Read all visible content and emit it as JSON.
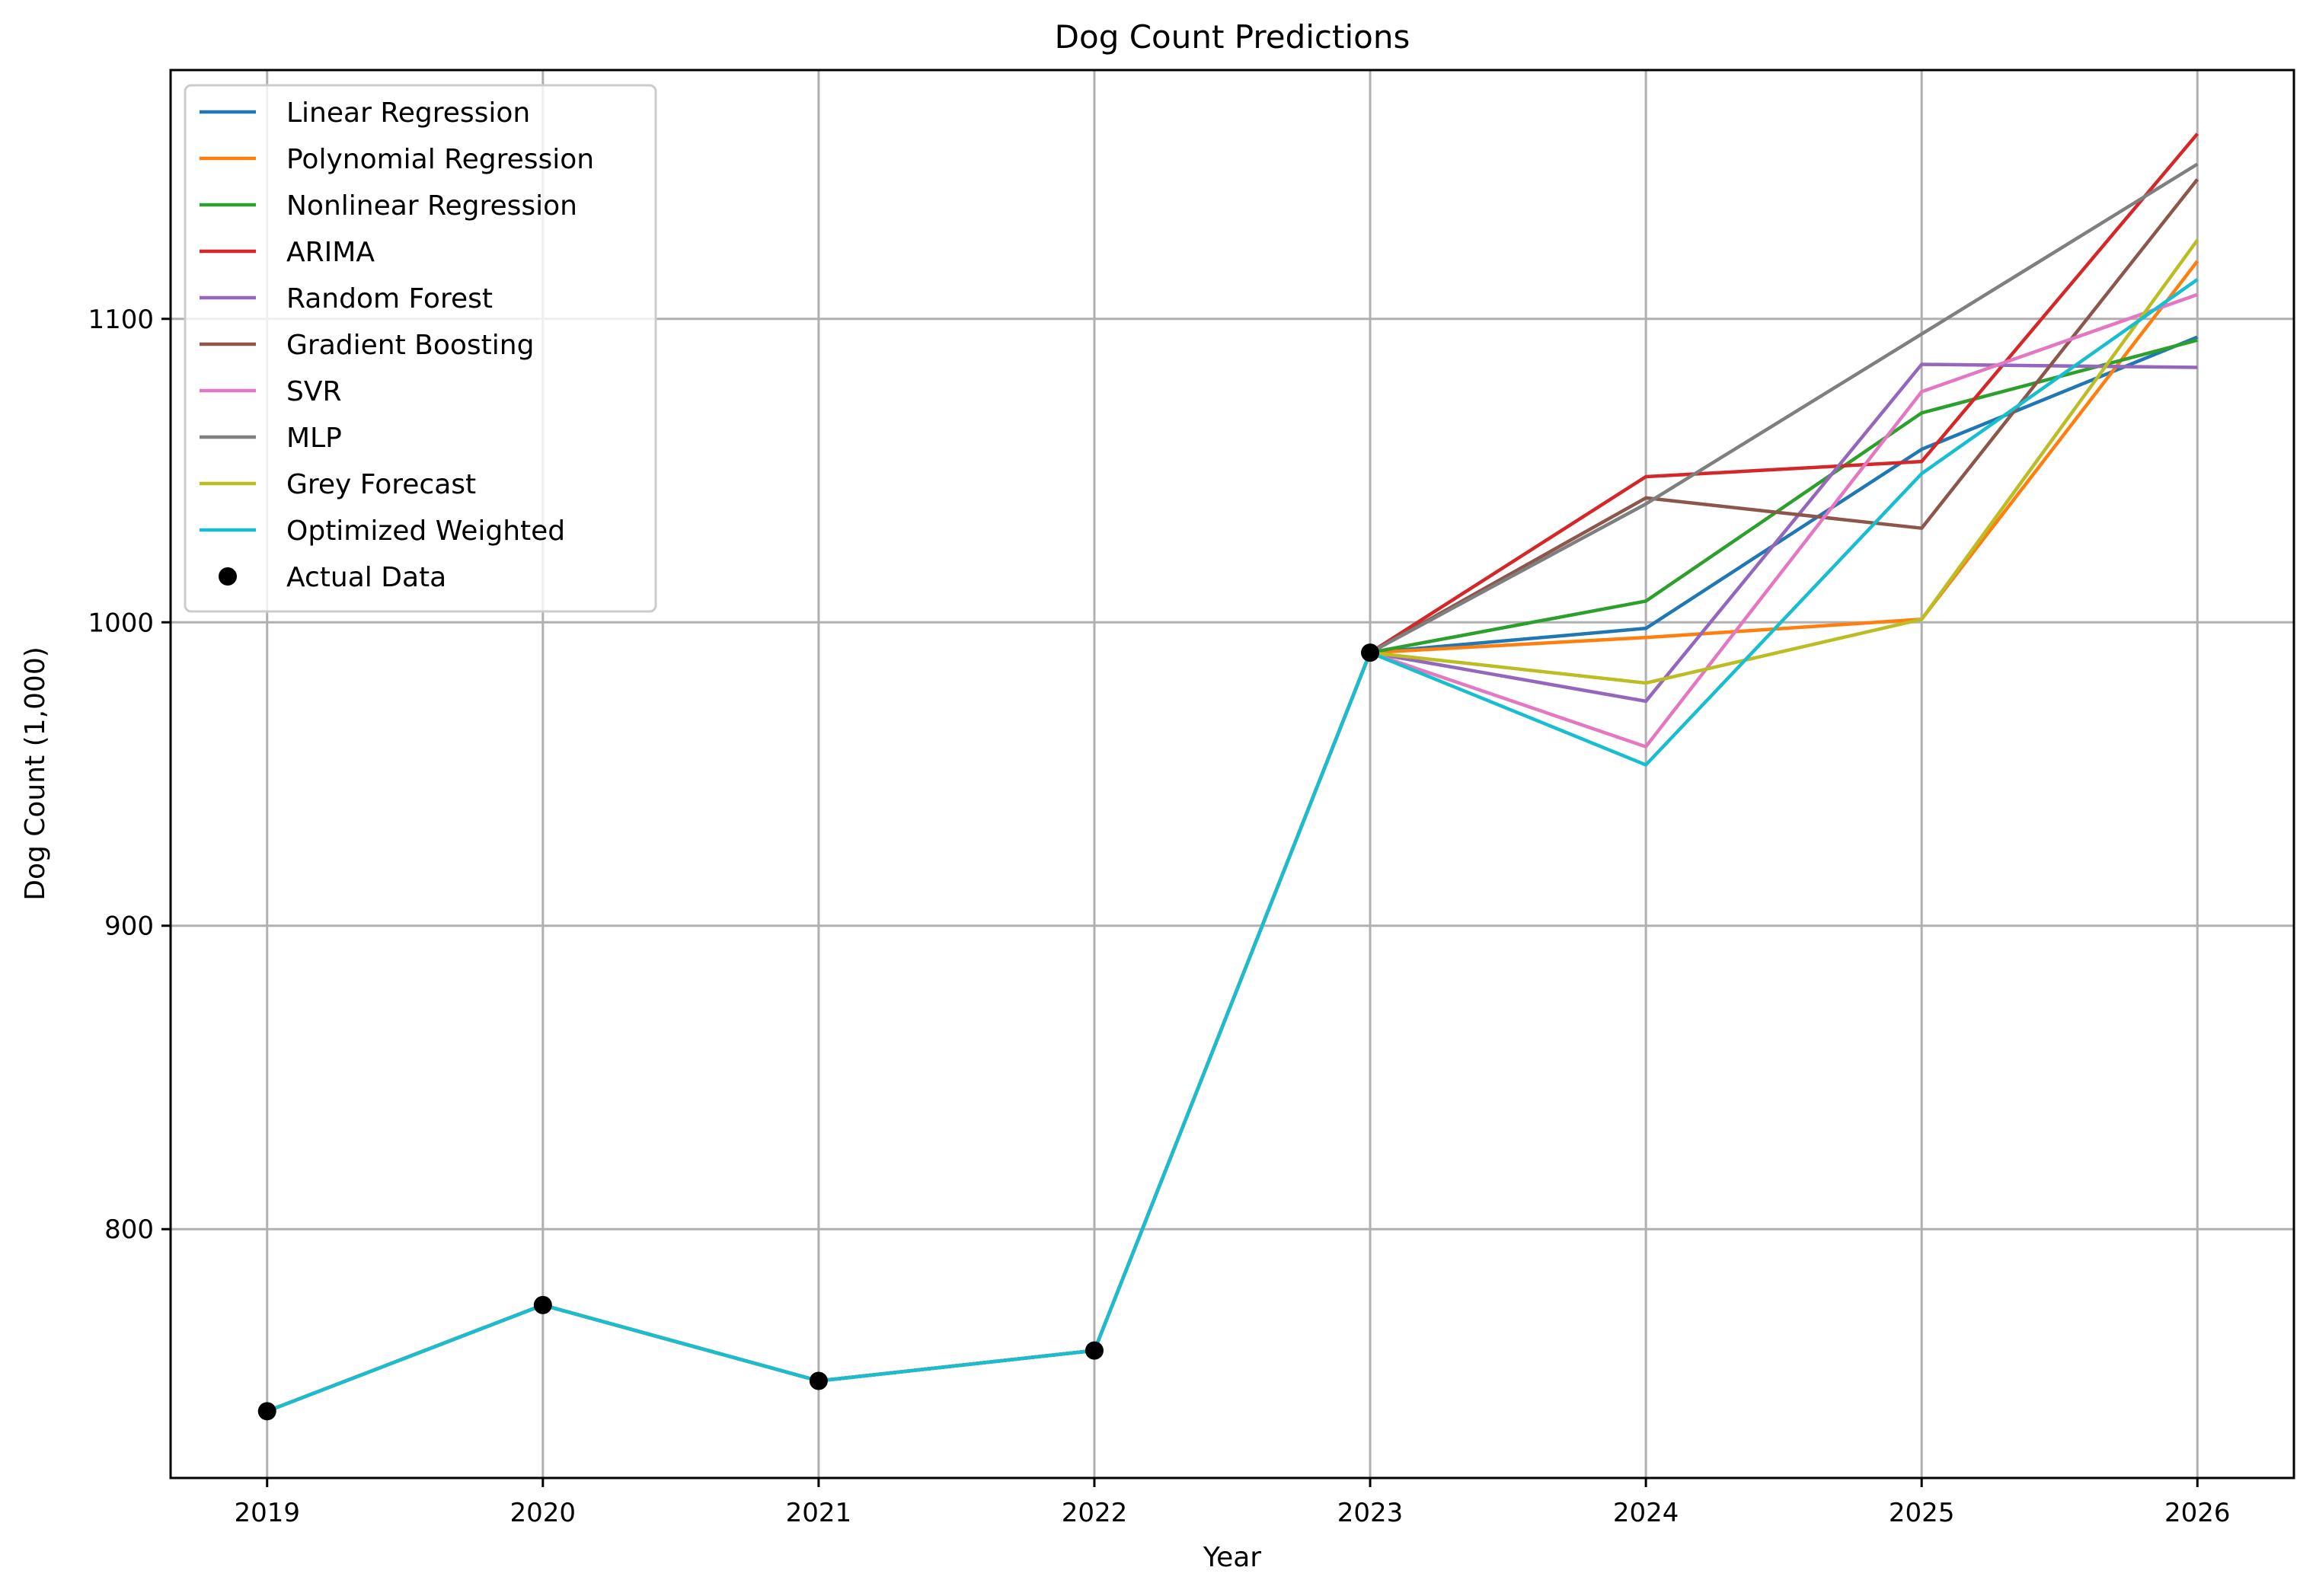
{
  "chart_data": {
    "type": "line",
    "title": "Dog Count Predictions",
    "xlabel": "Year",
    "ylabel": "Dog Count (1,000)",
    "x": [
      2019,
      2020,
      2021,
      2022,
      2023,
      2024,
      2025,
      2026
    ],
    "xlim": [
      2018.65,
      2026.35
    ],
    "ylim": [
      718,
      1182
    ],
    "xticks": [
      "2019",
      "2020",
      "2021",
      "2022",
      "2023",
      "2024",
      "2025",
      "2026"
    ],
    "yticks": [
      800,
      900,
      1000,
      1100
    ],
    "ytick_labels": [
      "800",
      "900",
      "1000",
      "1100"
    ],
    "grid": true,
    "legend_position": "top-left",
    "history": {
      "x": [
        2019,
        2020,
        2021,
        2022,
        2023
      ],
      "y": [
        740,
        775,
        750,
        760,
        990
      ]
    },
    "series": [
      {
        "name": "Linear Regression",
        "color": "#1f77b4",
        "x": [
          2019,
          2020,
          2021,
          2022,
          2023,
          2024,
          2025,
          2026
        ],
        "y": [
          740,
          775,
          750,
          760,
          990,
          998,
          1057,
          1094
        ]
      },
      {
        "name": "Polynomial Regression",
        "color": "#ff7f0e",
        "x": [
          2019,
          2020,
          2021,
          2022,
          2023,
          2024,
          2025,
          2026
        ],
        "y": [
          740,
          775,
          750,
          760,
          990,
          995,
          1001,
          1119
        ]
      },
      {
        "name": "Nonlinear Regression",
        "color": "#2ca02c",
        "x": [
          2019,
          2020,
          2021,
          2022,
          2023,
          2024,
          2025,
          2026
        ],
        "y": [
          740,
          775,
          750,
          760,
          990,
          1007,
          1069,
          1093
        ]
      },
      {
        "name": "ARIMA",
        "color": "#d62728",
        "x": [
          2019,
          2020,
          2021,
          2022,
          2023,
          2024,
          2025,
          2026
        ],
        "y": [
          740,
          775,
          750,
          760,
          990,
          1048,
          1053,
          1161
        ]
      },
      {
        "name": "Random Forest",
        "color": "#9467bd",
        "x": [
          2019,
          2020,
          2021,
          2022,
          2023,
          2024,
          2025,
          2026
        ],
        "y": [
          740,
          775,
          750,
          760,
          990,
          974,
          1085,
          1084
        ]
      },
      {
        "name": "Gradient Boosting",
        "color": "#8c564b",
        "x": [
          2019,
          2020,
          2021,
          2022,
          2023,
          2024,
          2025,
          2026
        ],
        "y": [
          740,
          775,
          750,
          760,
          990,
          1041,
          1031,
          1146
        ]
      },
      {
        "name": "SVR",
        "color": "#e377c2",
        "x": [
          2019,
          2020,
          2021,
          2022,
          2023,
          2024,
          2025,
          2026
        ],
        "y": [
          740,
          775,
          750,
          760,
          990,
          959,
          1076,
          1108
        ]
      },
      {
        "name": "MLP",
        "color": "#7f7f7f",
        "x": [
          2019,
          2020,
          2021,
          2022,
          2023,
          2024,
          2025,
          2026
        ],
        "y": [
          740,
          775,
          750,
          760,
          990,
          1039,
          1095,
          1151
        ]
      },
      {
        "name": "Grey Forecast",
        "color": "#bcbd22",
        "x": [
          2019,
          2020,
          2021,
          2022,
          2023,
          2024,
          2025,
          2026
        ],
        "y": [
          740,
          775,
          750,
          760,
          990,
          980,
          1001,
          1126
        ]
      },
      {
        "name": "Optimized Weighted",
        "color": "#17becf",
        "x": [
          2019,
          2020,
          2021,
          2022,
          2023,
          2024,
          2025,
          2026
        ],
        "y": [
          740,
          775,
          750,
          760,
          990,
          953,
          1049,
          1113
        ]
      }
    ],
    "actual": {
      "name": "Actual Data",
      "color": "#000000",
      "x": [
        2019,
        2020,
        2021,
        2022,
        2023
      ],
      "y": [
        740,
        775,
        750,
        760,
        990
      ]
    }
  }
}
